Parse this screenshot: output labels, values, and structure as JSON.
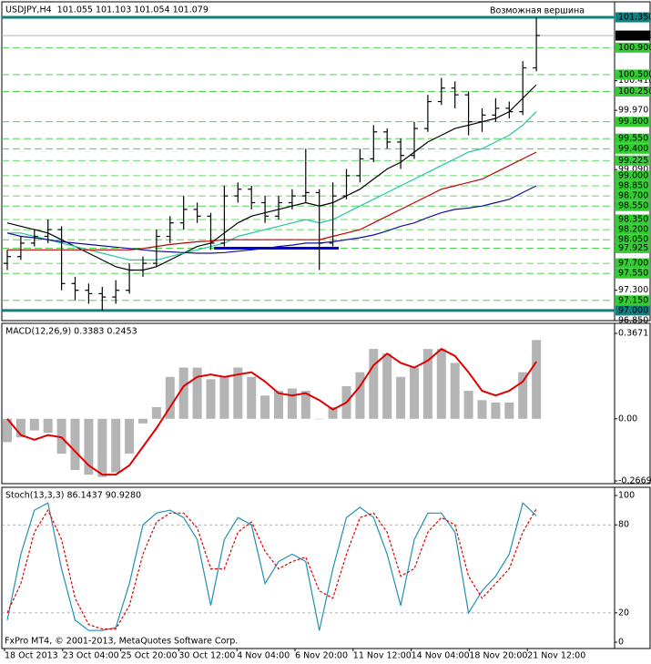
{
  "chart_data": [
    {
      "type": "ohlc",
      "title": "USDJPY,H4  101.055 101.103 101.054 101.079",
      "annotation": "Возможная вершина",
      "color": "#000000",
      "ohlc": [
        [
          97.7,
          97.9,
          97.6,
          97.8
        ],
        [
          97.8,
          98.1,
          97.75,
          98.0
        ],
        [
          98.0,
          98.2,
          97.95,
          98.1
        ],
        [
          98.1,
          98.35,
          98.0,
          98.2
        ],
        [
          98.2,
          98.25,
          97.3,
          97.4
        ],
        [
          97.4,
          97.5,
          97.15,
          97.3
        ],
        [
          97.3,
          97.4,
          97.1,
          97.25
        ],
        [
          97.25,
          97.35,
          97.0,
          97.2
        ],
        [
          97.2,
          97.45,
          97.1,
          97.3
        ],
        [
          97.3,
          97.7,
          97.25,
          97.6
        ],
        [
          97.6,
          97.8,
          97.5,
          97.7
        ],
        [
          97.7,
          98.2,
          97.65,
          98.1
        ],
        [
          98.1,
          98.4,
          98.0,
          98.3
        ],
        [
          98.3,
          98.7,
          98.2,
          98.5
        ],
        [
          98.5,
          98.6,
          98.3,
          98.4
        ],
        [
          98.4,
          98.45,
          97.9,
          98.0
        ],
        [
          98.0,
          98.85,
          97.95,
          98.7
        ],
        [
          98.7,
          98.9,
          98.6,
          98.8
        ],
        [
          98.8,
          98.85,
          98.5,
          98.6
        ],
        [
          98.6,
          98.7,
          98.3,
          98.4
        ],
        [
          98.4,
          98.7,
          98.35,
          98.6
        ],
        [
          98.6,
          98.8,
          98.5,
          98.7
        ],
        [
          98.7,
          99.4,
          98.6,
          98.75
        ],
        [
          98.75,
          98.8,
          97.6,
          98.0
        ],
        [
          98.0,
          98.9,
          97.95,
          98.7
        ],
        [
          98.7,
          99.1,
          98.65,
          99.0
        ],
        [
          99.0,
          99.4,
          98.9,
          99.25
        ],
        [
          99.25,
          99.75,
          99.2,
          99.65
        ],
        [
          99.65,
          99.7,
          99.4,
          99.5
        ],
        [
          99.5,
          99.55,
          99.1,
          99.3
        ],
        [
          99.3,
          99.8,
          99.25,
          99.7
        ],
        [
          99.7,
          100.2,
          99.65,
          100.1
        ],
        [
          100.1,
          100.45,
          100.05,
          100.3
        ],
        [
          100.3,
          100.4,
          100.0,
          100.2
        ],
        [
          100.2,
          100.25,
          99.6,
          99.8
        ],
        [
          99.8,
          100.0,
          99.65,
          99.9
        ],
        [
          99.9,
          100.15,
          99.8,
          100.0
        ],
        [
          100.0,
          100.1,
          99.85,
          99.95
        ],
        [
          99.95,
          100.7,
          99.9,
          100.6
        ],
        [
          100.6,
          101.35,
          100.55,
          101.08
        ]
      ],
      "series": [
        {
          "color": "#000000",
          "values": [
            98.3,
            98.25,
            98.2,
            98.15,
            98.05,
            97.95,
            97.85,
            97.75,
            97.65,
            97.6,
            97.6,
            97.65,
            97.75,
            97.85,
            97.95,
            98.0,
            98.15,
            98.3,
            98.4,
            98.45,
            98.5,
            98.55,
            98.6,
            98.55,
            98.6,
            98.7,
            98.8,
            98.95,
            99.1,
            99.2,
            99.35,
            99.5,
            99.6,
            99.7,
            99.75,
            99.8,
            99.85,
            99.95,
            100.15,
            100.35
          ]
        },
        {
          "color": "#20c8a0",
          "values": [
            98.15,
            98.15,
            98.1,
            98.05,
            98.0,
            97.95,
            97.9,
            97.85,
            97.8,
            97.75,
            97.75,
            97.75,
            97.8,
            97.85,
            97.9,
            97.95,
            98.0,
            98.1,
            98.15,
            98.2,
            98.25,
            98.3,
            98.35,
            98.3,
            98.35,
            98.45,
            98.55,
            98.65,
            98.75,
            98.85,
            98.95,
            99.05,
            99.15,
            99.25,
            99.35,
            99.4,
            99.5,
            99.6,
            99.75,
            99.95
          ]
        },
        {
          "color": "#c00000",
          "values": [
            97.9,
            97.9,
            97.9,
            97.9,
            97.9,
            97.9,
            97.9,
            97.9,
            97.9,
            97.9,
            97.92,
            97.95,
            97.98,
            98.0,
            98.02,
            98.03,
            98.05,
            98.05,
            98.05,
            98.05,
            98.05,
            98.05,
            98.05,
            98.05,
            98.1,
            98.15,
            98.2,
            98.3,
            98.4,
            98.5,
            98.6,
            98.7,
            98.8,
            98.85,
            98.9,
            98.95,
            99.05,
            99.15,
            99.25,
            99.35
          ]
        },
        {
          "color": "#1010a0",
          "values": [
            98.15,
            98.1,
            98.08,
            98.05,
            98.02,
            98.0,
            97.98,
            97.96,
            97.94,
            97.92,
            97.9,
            97.88,
            97.87,
            97.86,
            97.85,
            97.85,
            97.86,
            97.88,
            97.9,
            97.92,
            97.95,
            97.97,
            98.0,
            98.0,
            98.02,
            98.05,
            98.08,
            98.12,
            98.18,
            98.25,
            98.3,
            98.38,
            98.45,
            98.5,
            98.52,
            98.55,
            98.6,
            98.65,
            98.75,
            98.85
          ]
        }
      ],
      "ylim": [
        96.85,
        101.58
      ],
      "yticks": [
        {
          "value": 100.41,
          "label": "100.410"
        },
        {
          "value": 99.97,
          "label": "99.970"
        },
        {
          "value": 99.09,
          "label": "99.090"
        },
        {
          "value": 97.3,
          "label": "97.300"
        },
        {
          "value": 96.85,
          "label": "96.850"
        }
      ],
      "levels": [
        {
          "value": 100.9,
          "label": "100.900"
        },
        {
          "value": 100.5,
          "label": "100.500"
        },
        {
          "value": 100.25,
          "label": "100.250"
        },
        {
          "value": 99.8,
          "label": "99.800"
        },
        {
          "value": 99.55,
          "label": "99.550"
        },
        {
          "value": 99.4,
          "label": "99.400"
        },
        {
          "value": 99.225,
          "label": "99.225"
        },
        {
          "value": 99,
          "label": "99.000"
        },
        {
          "value": 98.85,
          "label": "98.850"
        },
        {
          "value": 98.7,
          "label": "98.700"
        },
        {
          "value": 98.55,
          "label": "98.550"
        },
        {
          "value": 98.35,
          "label": "98.350"
        },
        {
          "value": 98.2,
          "label": "98.200"
        },
        {
          "value": 98.05,
          "label": "98.050"
        },
        {
          "value": 97.925,
          "label": "97.925"
        },
        {
          "value": 97.7,
          "label": "97.700"
        },
        {
          "value": 97.55,
          "label": "97.550"
        },
        {
          "value": 97.15,
          "label": "97.150"
        }
      ],
      "level_color": "#33cc33",
      "key_levels": [
        {
          "value": 101.35,
          "label": "101.350"
        },
        {
          "value": 97,
          "label": "97.000"
        }
      ],
      "key_color": "#108080",
      "price_label": {
        "value": 101.079,
        "label": "101.079"
      },
      "support_line": {
        "value": 97.925,
        "color": "#0000dd"
      }
    },
    {
      "type": "macd",
      "title": "MACD(12,26,9) 0.3383 0.2453",
      "histogram": {
        "color": "#b4b4b4",
        "values": [
          -0.1,
          -0.08,
          -0.05,
          -0.06,
          -0.15,
          -0.22,
          -0.24,
          -0.25,
          -0.23,
          -0.15,
          -0.02,
          0.05,
          0.18,
          0.22,
          0.22,
          0.17,
          0.18,
          0.22,
          0.18,
          0.1,
          0.12,
          0.13,
          0.12,
          0.0,
          0.05,
          0.14,
          0.2,
          0.3,
          0.28,
          0.18,
          0.22,
          0.3,
          0.3,
          0.24,
          0.12,
          0.08,
          0.07,
          0.07,
          0.2,
          0.3383
        ]
      },
      "signal": {
        "color": "#e00000",
        "values": [
          0.0,
          -0.07,
          -0.09,
          -0.07,
          -0.08,
          -0.14,
          -0.2,
          -0.24,
          -0.24,
          -0.2,
          -0.12,
          -0.04,
          0.05,
          0.14,
          0.18,
          0.19,
          0.18,
          0.19,
          0.2,
          0.16,
          0.11,
          0.1,
          0.11,
          0.08,
          0.04,
          0.07,
          0.14,
          0.23,
          0.28,
          0.24,
          0.22,
          0.25,
          0.3,
          0.27,
          0.2,
          0.12,
          0.1,
          0.12,
          0.16,
          0.2453
        ]
      },
      "ylim": [
        -0.2786,
        0.41
      ],
      "yticks": [
        0.3671,
        {
          "value": 0,
          "label": "0.00"
        },
        -0.2669
      ]
    },
    {
      "type": "stoch",
      "title": "Stoch(13,3,3) 86.1437 90.9280",
      "series": [
        {
          "color": "#2090b0",
          "dashed": false,
          "values": [
            15,
            60,
            90,
            95,
            50,
            15,
            8,
            8,
            10,
            40,
            80,
            88,
            90,
            85,
            70,
            25,
            70,
            85,
            80,
            40,
            55,
            60,
            55,
            8,
            50,
            85,
            92,
            85,
            60,
            25,
            70,
            88,
            88,
            75,
            20,
            35,
            45,
            60,
            95,
            86.1437
          ]
        },
        {
          "color": "#e00000",
          "dashed": true,
          "values": [
            20,
            40,
            75,
            90,
            70,
            30,
            12,
            9,
            9,
            25,
            60,
            82,
            88,
            88,
            78,
            50,
            50,
            75,
            82,
            62,
            50,
            55,
            58,
            35,
            30,
            60,
            85,
            88,
            75,
            45,
            50,
            75,
            85,
            80,
            45,
            30,
            40,
            50,
            75,
            90.928
          ]
        }
      ],
      "ylim": [
        -4.3,
        105.6
      ],
      "yticks": [
        100,
        80,
        20,
        0
      ],
      "levels": [
        80,
        20
      ]
    }
  ],
  "time_labels": [
    "18 Oct 2013",
    "23 Oct 04:00",
    "25 Oct 20:00",
    "30 Oct 12:00",
    "4 Nov 04:00",
    "6 Nov 20:00",
    "11 Nov 12:00",
    "14 Nov 04:00",
    "18 Nov 20:00",
    "21 Nov 12:00"
  ],
  "footer": "FxPro MT4, © 2001-2013, MetaQuotes Software Corp."
}
